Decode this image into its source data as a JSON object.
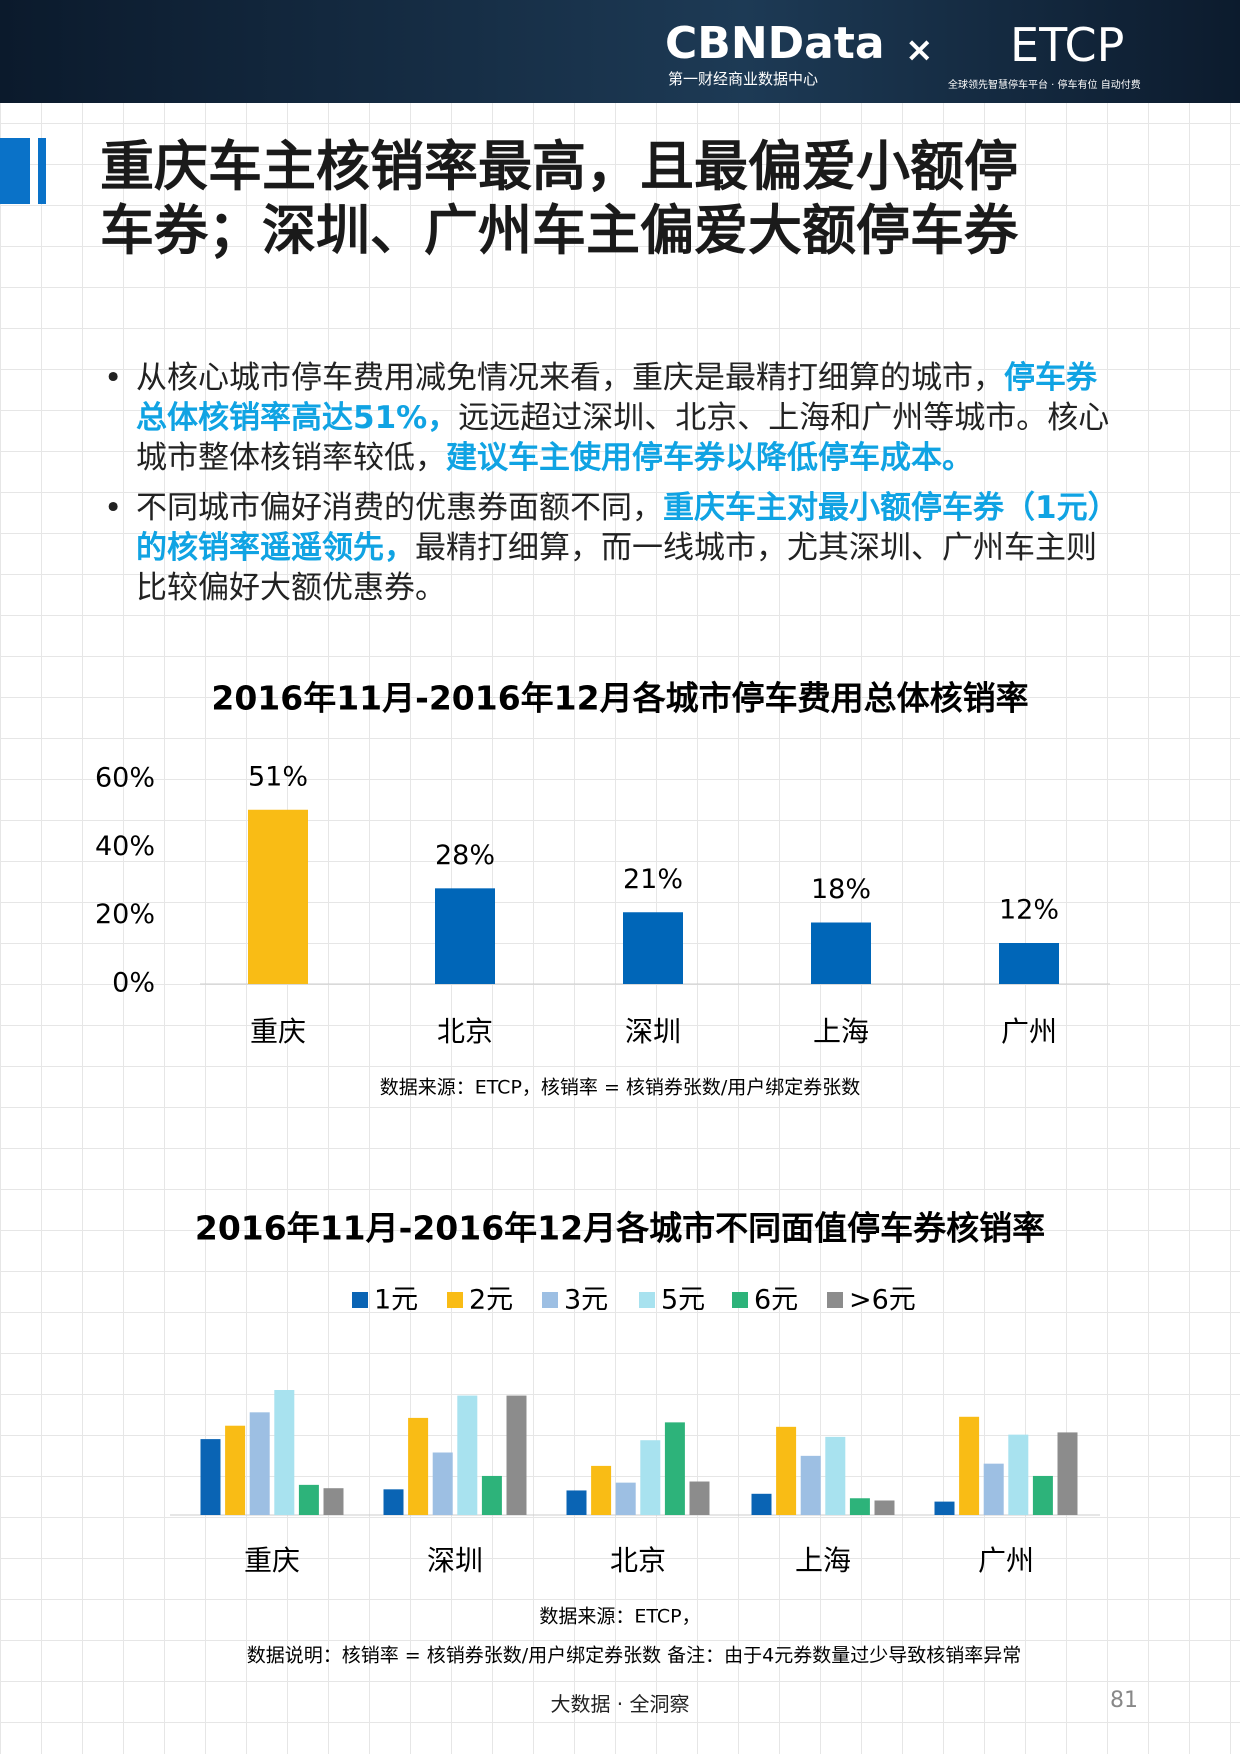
{
  "header": {
    "logo": "CBNData",
    "times": "×",
    "partner": "ETCP",
    "logo_sub": "第一财经商业数据中心",
    "partner_sub": "全球领先智慧停车平台 · 停车有位 自动付费"
  },
  "title": [
    "重庆车主核销率最高，且最偏爱小额停",
    "车券；深圳、广州车主偏爱大额停车券"
  ],
  "bullets": [
    [
      {
        "text": "从核心城市停车费用减免情况来看，重庆是最精打细算的城市，",
        "em": false
      },
      {
        "text": "停车券总体核销率高达51%，",
        "em": true
      },
      {
        "text": "远远超过深圳、北京、上海和广州等城市。核心城市整体核销率较低，",
        "em": false
      },
      {
        "text": "建议车主使用停车券以降低停车成本。",
        "em": true
      }
    ],
    [
      {
        "text": "不同城市偏好消费的优惠券面额不同，",
        "em": false
      },
      {
        "text": "重庆车主对最小额停车券（1元）的核销率遥遥领先，",
        "em": true
      },
      {
        "text": "最精打细算，而一线城市，尤其深圳、广州车主则比较偏好大额优惠券。",
        "em": false
      }
    ]
  ],
  "chart_data": [
    {
      "type": "bar",
      "title": "2016年11月-2016年12月各城市停车费用总体核销率",
      "categories": [
        "重庆",
        "北京",
        "深圳",
        "上海",
        "广州"
      ],
      "values": [
        51,
        28,
        21,
        18,
        12
      ],
      "value_labels": [
        "51%",
        "28%",
        "21%",
        "18%",
        "12%"
      ],
      "colors": [
        "#f9bc15",
        "#0066b8",
        "#0066b8",
        "#0066b8",
        "#0066b8"
      ],
      "ylim": [
        0,
        60
      ],
      "yticks": [
        {
          "value": 0,
          "label": "0%"
        },
        {
          "value": 20,
          "label": "20%"
        },
        {
          "value": 40,
          "label": "40%"
        },
        {
          "value": 60,
          "label": "60%"
        }
      ],
      "source": "数据来源：ETCP，核销率 = 核销券张数/用户绑定券张数"
    },
    {
      "type": "grouped_bar",
      "title": "2016年11月-2016年12月各城市不同面值停车券核销率",
      "categories": [
        "重庆",
        "深圳",
        "北京",
        "上海",
        "广州"
      ],
      "series": [
        {
          "name": "1元",
          "color": "#0a64b4",
          "values": [
            68,
            23,
            22,
            19,
            12
          ]
        },
        {
          "name": "2元",
          "color": "#f9bc15",
          "values": [
            80,
            87,
            44,
            79,
            88
          ]
        },
        {
          "name": "3元",
          "color": "#9dbfe3",
          "values": [
            92,
            56,
            29,
            53,
            46
          ]
        },
        {
          "name": "5元",
          "color": "#a8e2ef",
          "values": [
            112,
            107,
            67,
            70,
            72
          ]
        },
        {
          "name": "6元",
          "color": "#2db37a",
          "values": [
            27,
            35,
            83,
            15,
            35
          ]
        },
        {
          "name": ">6元",
          "color": "#8c8c8c",
          "values": [
            24,
            107,
            30,
            13,
            74
          ]
        }
      ],
      "source": "数据来源：ETCP，",
      "note": "数据说明：核销率 = 核销券张数/用户绑定券张数 备注：由于4元券数量过少导致核销率异常"
    }
  ],
  "footer": {
    "slogan": "大数据 · 全洞察",
    "page": "81"
  }
}
